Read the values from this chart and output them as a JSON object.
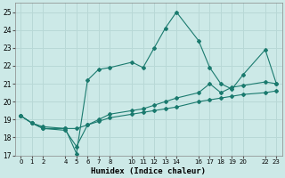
{
  "xlabel": "Humidex (Indice chaleur)",
  "xlim": [
    -0.5,
    23.5
  ],
  "ylim": [
    17,
    25.5
  ],
  "yticks": [
    17,
    18,
    19,
    20,
    21,
    22,
    23,
    24,
    25
  ],
  "xticks": [
    0,
    1,
    2,
    4,
    5,
    6,
    7,
    8,
    10,
    11,
    12,
    13,
    14,
    16,
    17,
    18,
    19,
    20,
    22,
    23
  ],
  "background_color": "#cce9e7",
  "grid_color": "#b8d8d6",
  "line_color": "#1a7a6e",
  "line1_x": [
    0,
    1,
    2,
    4,
    5,
    6,
    7,
    8,
    10,
    11,
    12,
    13,
    14,
    16,
    17,
    18,
    19,
    20,
    22,
    23
  ],
  "line1_y": [
    19.2,
    18.8,
    18.6,
    18.5,
    18.5,
    18.7,
    18.9,
    19.1,
    19.3,
    19.4,
    19.5,
    19.6,
    19.7,
    20.0,
    20.1,
    20.2,
    20.3,
    20.4,
    20.5,
    20.6
  ],
  "line2_x": [
    0,
    1,
    2,
    4,
    5,
    6,
    7,
    8,
    10,
    11,
    12,
    13,
    14,
    16,
    17,
    18,
    19,
    20,
    22,
    23
  ],
  "line2_y": [
    19.2,
    18.8,
    18.5,
    18.4,
    17.5,
    18.7,
    19.0,
    19.3,
    19.5,
    19.6,
    19.8,
    20.0,
    20.2,
    20.5,
    21.0,
    20.5,
    20.8,
    20.9,
    21.1,
    21.0
  ],
  "line3_x": [
    0,
    1,
    2,
    4,
    5,
    6,
    7,
    8,
    10,
    11,
    12,
    13,
    14,
    16,
    17,
    18,
    19,
    20,
    22,
    23
  ],
  "line3_y": [
    19.2,
    18.8,
    18.5,
    18.5,
    17.1,
    21.2,
    21.8,
    21.9,
    22.2,
    21.9,
    23.0,
    24.1,
    25.0,
    23.4,
    21.9,
    21.0,
    20.7,
    21.5,
    22.9,
    21.0
  ]
}
